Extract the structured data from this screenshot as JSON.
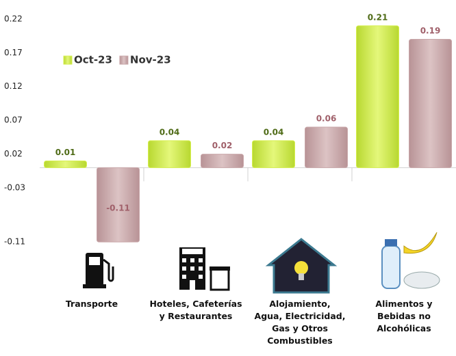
{
  "chart_data": {
    "type": "bar",
    "categories": [
      "Transporte",
      "Hoteles, Cafeterías\ny Restaurantes",
      "Alojamiento,\nAgua, Electricidad,\nGas y Otros\nCombustibles",
      "Alimentos y\nBebidas no\nAlcohólicas"
    ],
    "series": [
      {
        "name": "Oct-23",
        "color": "#d6ef4e",
        "label_color": "#4f6b17",
        "values": [
          0.01,
          0.04,
          0.04,
          0.21
        ]
      },
      {
        "name": "Nov-23",
        "color": "#c9a7a9",
        "label_color": "#a0606a",
        "values": [
          -0.11,
          0.02,
          0.06,
          0.19
        ]
      }
    ],
    "ylim": [
      -0.12,
      0.23
    ],
    "yticks": [
      0.22,
      0.17,
      0.12,
      0.07,
      0.02,
      -0.03,
      -0.11
    ],
    "legend": "upper left"
  }
}
